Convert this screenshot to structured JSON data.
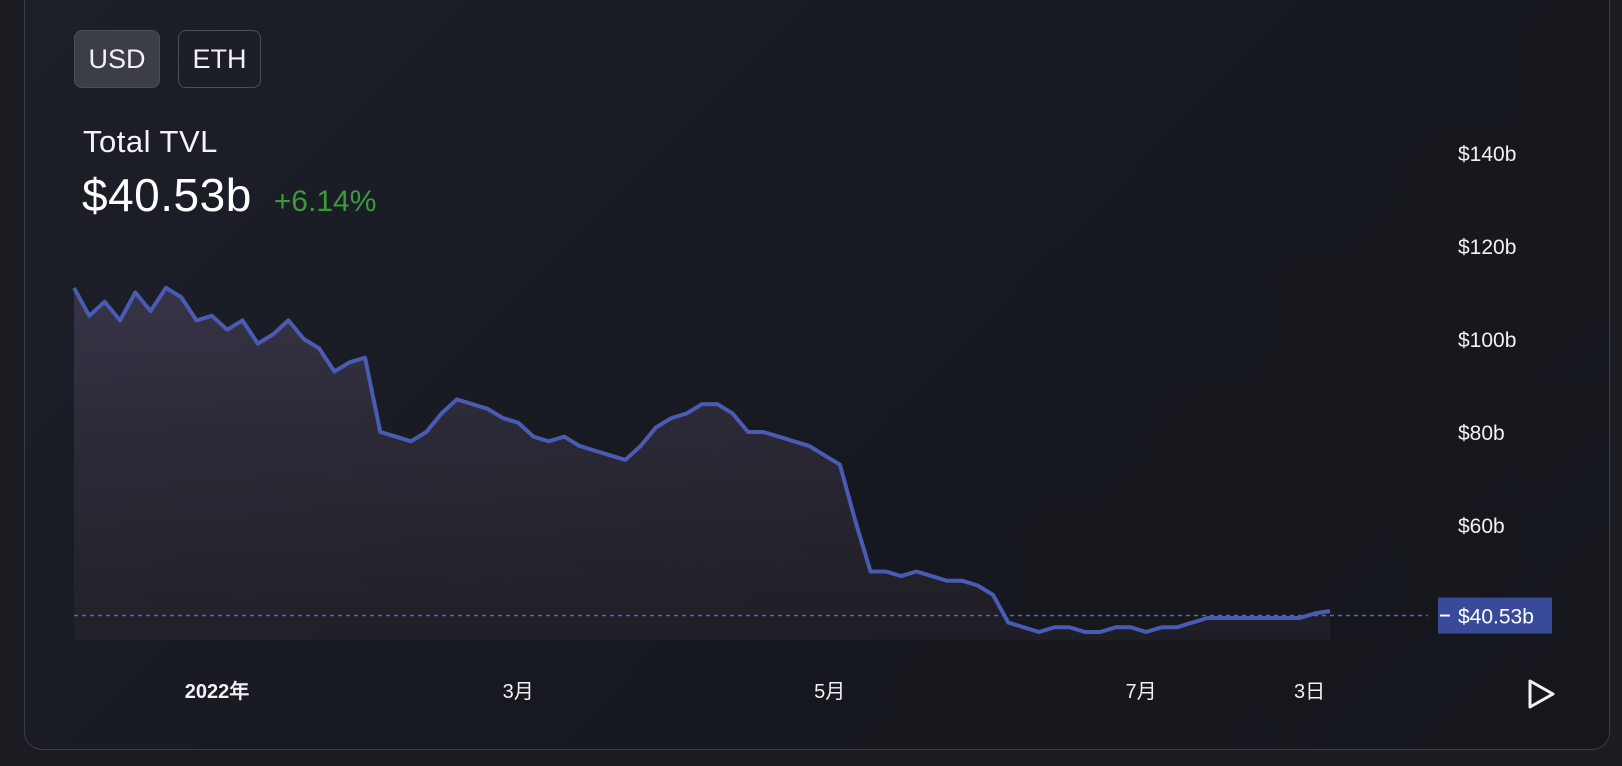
{
  "toggles": {
    "usd_label": "USD",
    "eth_label": "ETH",
    "selected": "USD"
  },
  "header": {
    "title": "Total TVL",
    "value": "$40.53b",
    "change": "+6.14%"
  },
  "colors": {
    "line": "#4a5bb3",
    "change_positive": "#3c9a3c",
    "current_label_bg": "#3a4a9a"
  },
  "controls": {
    "play_icon": "play-icon"
  },
  "chart_data": {
    "type": "area",
    "title": "Total TVL",
    "xlabel": "",
    "ylabel": "",
    "y_ticks": [
      60,
      80,
      100,
      120,
      140
    ],
    "y_tick_labels": [
      "$60b",
      "$80b",
      "$100b",
      "$120b",
      "$140b"
    ],
    "ylim": [
      40,
      150
    ],
    "x_ticks": [
      "2022-01-01",
      "2022-03-01",
      "2022-05-01",
      "2022-07-01",
      "2022-08-03"
    ],
    "x_tick_labels": [
      "2022年",
      "3月",
      "5月",
      "7月",
      "3日"
    ],
    "current_value": 40.53,
    "current_label": "$40.53b",
    "grid": false,
    "series": [
      {
        "unit": "billion USD",
        "x": [
          "2021-12-04",
          "2021-12-07",
          "2021-12-10",
          "2021-12-13",
          "2021-12-16",
          "2021-12-19",
          "2021-12-22",
          "2021-12-25",
          "2021-12-28",
          "2021-12-31",
          "2022-01-03",
          "2022-01-06",
          "2022-01-09",
          "2022-01-12",
          "2022-01-15",
          "2022-01-18",
          "2022-01-21",
          "2022-01-24",
          "2022-01-27",
          "2022-01-30",
          "2022-02-02",
          "2022-02-05",
          "2022-02-08",
          "2022-02-11",
          "2022-02-14",
          "2022-02-17",
          "2022-02-20",
          "2022-02-23",
          "2022-02-26",
          "2022-03-01",
          "2022-03-04",
          "2022-03-07",
          "2022-03-10",
          "2022-03-13",
          "2022-03-16",
          "2022-03-19",
          "2022-03-22",
          "2022-03-25",
          "2022-03-28",
          "2022-03-31",
          "2022-04-03",
          "2022-04-06",
          "2022-04-09",
          "2022-04-12",
          "2022-04-15",
          "2022-04-18",
          "2022-04-21",
          "2022-04-24",
          "2022-04-27",
          "2022-04-30",
          "2022-05-03",
          "2022-05-06",
          "2022-05-09",
          "2022-05-12",
          "2022-05-15",
          "2022-05-18",
          "2022-05-21",
          "2022-05-24",
          "2022-05-27",
          "2022-05-30",
          "2022-06-02",
          "2022-06-05",
          "2022-06-08",
          "2022-06-11",
          "2022-06-14",
          "2022-06-17",
          "2022-06-20",
          "2022-06-23",
          "2022-06-26",
          "2022-06-29",
          "2022-07-02",
          "2022-07-05",
          "2022-07-08",
          "2022-07-11",
          "2022-07-14",
          "2022-07-17",
          "2022-07-20",
          "2022-07-23",
          "2022-07-26",
          "2022-07-29",
          "2022-08-01",
          "2022-08-04",
          "2022-08-07"
        ],
        "values": [
          111,
          105,
          108,
          104,
          110,
          106,
          111,
          109,
          104,
          105,
          102,
          104,
          99,
          101,
          104,
          100,
          98,
          93,
          95,
          96,
          80,
          79,
          78,
          80,
          84,
          87,
          86,
          85,
          83,
          82,
          79,
          78,
          79,
          77,
          76,
          75,
          74,
          77,
          81,
          83,
          84,
          86,
          86,
          84,
          80,
          80,
          79,
          78,
          77,
          75,
          73,
          61,
          50,
          50,
          49,
          50,
          49,
          48,
          48,
          47,
          45,
          39,
          38,
          37,
          38,
          38,
          37,
          37,
          38,
          38,
          37,
          38,
          38,
          39,
          40,
          40,
          40,
          40,
          40,
          40,
          40,
          41,
          41.5
        ]
      }
    ]
  }
}
